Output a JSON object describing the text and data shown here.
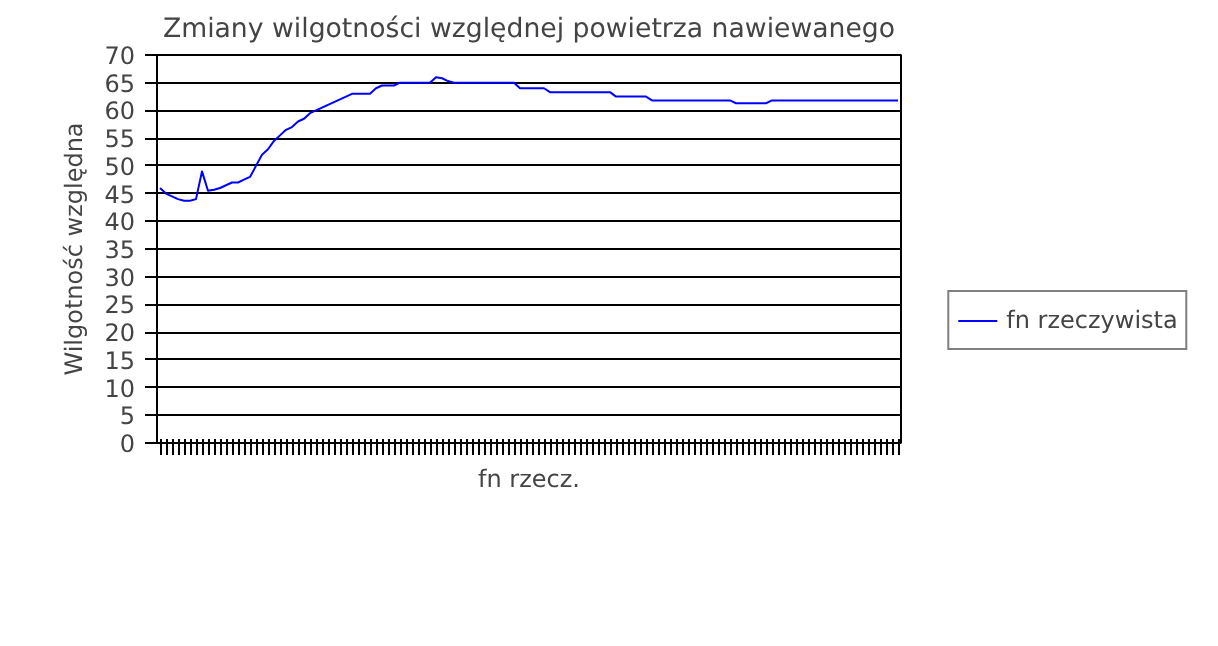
{
  "chart_data": {
    "type": "line",
    "title": "Zmiany wilgotności względnej powietrza nawiewanego",
    "xlabel": "fn rzecz.",
    "ylabel": "Wilgotność względna",
    "categories": [
      null,
      null,
      null,
      null,
      null,
      null,
      null,
      null,
      null,
      null,
      null,
      null,
      null,
      null,
      null,
      null,
      null,
      null,
      null,
      null,
      null,
      null,
      null,
      null,
      null,
      null,
      null,
      null,
      null,
      null,
      null,
      null,
      null,
      null,
      null,
      null,
      null,
      null,
      null,
      null,
      null,
      null,
      null,
      null,
      null,
      null,
      null,
      null,
      null,
      null,
      null,
      null,
      null,
      null,
      null,
      null,
      null,
      null,
      null,
      null,
      null,
      null,
      null,
      null,
      null,
      null,
      null,
      null,
      null,
      null,
      null,
      null,
      null,
      null,
      null,
      null,
      null,
      null,
      null,
      null,
      null,
      null,
      null,
      null,
      null,
      null,
      null,
      null,
      null,
      null,
      null,
      null,
      null,
      null,
      null,
      null,
      null,
      null,
      null,
      null,
      null,
      null,
      null,
      null,
      null,
      null,
      null,
      null,
      null,
      null,
      null,
      null,
      null,
      null,
      null,
      null,
      null,
      null,
      null,
      null,
      null,
      null,
      null,
      null
    ],
    "series": [
      {
        "name": "fn rzeczywista",
        "color": "#0000ff",
        "values": [
          46,
          45,
          44.5,
          44,
          43.7,
          43.7,
          44,
          49,
          45.5,
          45.7,
          46,
          46.5,
          47,
          47,
          47.5,
          48,
          50,
          52,
          53,
          54.5,
          55.5,
          56.5,
          57,
          58,
          58.5,
          59.5,
          60,
          60.5,
          61,
          61.5,
          62,
          62.5,
          63,
          63,
          63,
          63,
          64,
          64.5,
          64.5,
          64.5,
          65,
          65,
          65,
          65,
          65,
          65,
          66,
          65.8,
          65.3,
          65,
          65,
          65,
          65,
          65,
          65,
          65,
          65,
          65,
          65,
          65,
          64,
          64,
          64,
          64,
          64,
          63.3,
          63.3,
          63.3,
          63.3,
          63.3,
          63.3,
          63.3,
          63.3,
          63.3,
          63.3,
          63.3,
          62.5,
          62.5,
          62.5,
          62.5,
          62.5,
          62.5,
          61.8,
          61.8,
          61.8,
          61.8,
          61.8,
          61.8,
          61.8,
          61.8,
          61.8,
          61.8,
          61.8,
          61.8,
          61.8,
          61.8,
          61.3,
          61.3,
          61.3,
          61.3,
          61.3,
          61.3,
          61.8,
          61.8,
          61.8,
          61.8,
          61.8,
          61.8,
          61.8,
          61.8,
          61.8,
          61.8,
          61.8,
          61.8,
          61.8,
          61.8,
          61.8,
          61.8,
          61.8,
          61.8,
          61.8,
          61.8,
          61.8,
          61.8
        ]
      }
    ],
    "ylim": [
      0,
      70
    ],
    "yticks": [
      0,
      5,
      10,
      15,
      20,
      25,
      30,
      35,
      40,
      45,
      50,
      55,
      60,
      65,
      70
    ],
    "grid": "y",
    "legend": "right",
    "tick_labels": "y"
  }
}
